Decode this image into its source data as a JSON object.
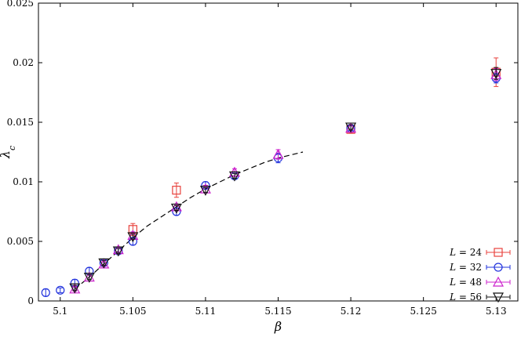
{
  "chart_data": {
    "type": "scatter",
    "title": "",
    "xlabel": "β",
    "ylabel": "λc",
    "xlim": [
      5.0985,
      5.1315
    ],
    "ylim": [
      0,
      0.025
    ],
    "xticks": [
      5.1,
      5.105,
      5.11,
      5.115,
      5.12,
      5.125,
      5.13
    ],
    "xtick_labels": [
      "5.1",
      "5.105",
      "5.11",
      "5.115",
      "5.12",
      "5.125",
      "5.13"
    ],
    "yticks": [
      0,
      0.005,
      0.01,
      0.015,
      0.02,
      0.025
    ],
    "ytick_labels": [
      "0",
      "0.005",
      "0.01",
      "0.015",
      "0.02",
      "0.025"
    ],
    "grid": false,
    "legend_position": "bottom-right",
    "series": [
      {
        "name": "L = 24",
        "legend": {
          "var": "L",
          "eq": " = 24"
        },
        "marker": "square",
        "color": "#e8413c",
        "points": [
          {
            "x": 5.105,
            "y": 0.006,
            "err": 0.0005
          },
          {
            "x": 5.108,
            "y": 0.0093,
            "err": 0.0006
          },
          {
            "x": 5.12,
            "y": 0.0144,
            "err": 0.0003
          },
          {
            "x": 5.13,
            "y": 0.0192,
            "err": 0.0012
          }
        ]
      },
      {
        "name": "L = 32",
        "legend": {
          "var": "L",
          "eq": " = 32"
        },
        "marker": "circle",
        "color": "#2233dd",
        "points": [
          {
            "x": 5.099,
            "y": 0.0007,
            "err": 0.0003
          },
          {
            "x": 5.1,
            "y": 0.0009,
            "err": 0.0002
          },
          {
            "x": 5.101,
            "y": 0.0015,
            "err": 0.0003
          },
          {
            "x": 5.102,
            "y": 0.0025,
            "err": 0.0003
          },
          {
            "x": 5.103,
            "y": 0.0032,
            "err": 0.0002
          },
          {
            "x": 5.104,
            "y": 0.0042,
            "err": 0.0002
          },
          {
            "x": 5.105,
            "y": 0.005,
            "err": 0.0003
          },
          {
            "x": 5.108,
            "y": 0.0075,
            "err": 0.0003
          },
          {
            "x": 5.11,
            "y": 0.0097,
            "err": 0.0003
          },
          {
            "x": 5.112,
            "y": 0.0105,
            "err": 0.0002
          },
          {
            "x": 5.115,
            "y": 0.012,
            "err": 0.0004
          },
          {
            "x": 5.12,
            "y": 0.0145,
            "err": 0.0002
          },
          {
            "x": 5.13,
            "y": 0.0187,
            "err": 0.0004
          }
        ]
      },
      {
        "name": "L = 48",
        "legend": {
          "var": "L",
          "eq": " = 48"
        },
        "marker": "triangle-up",
        "color": "#cc22cc",
        "points": [
          {
            "x": 5.101,
            "y": 0.001,
            "err": 0.0002
          },
          {
            "x": 5.102,
            "y": 0.002,
            "err": 0.0002
          },
          {
            "x": 5.103,
            "y": 0.0031,
            "err": 0.0002
          },
          {
            "x": 5.104,
            "y": 0.0043,
            "err": 0.0002
          },
          {
            "x": 5.105,
            "y": 0.0055,
            "err": 0.0003
          },
          {
            "x": 5.108,
            "y": 0.0079,
            "err": 0.0002
          },
          {
            "x": 5.11,
            "y": 0.0094,
            "err": 0.0003
          },
          {
            "x": 5.112,
            "y": 0.0108,
            "err": 0.0003
          },
          {
            "x": 5.115,
            "y": 0.0123,
            "err": 0.0004
          },
          {
            "x": 5.12,
            "y": 0.0145,
            "err": 0.0003
          },
          {
            "x": 5.13,
            "y": 0.019,
            "err": 0.0005
          }
        ]
      },
      {
        "name": "L = 56",
        "legend": {
          "var": "L",
          "eq": " = 56"
        },
        "marker": "triangle-down",
        "color": "#111111",
        "points": [
          {
            "x": 5.101,
            "y": 0.0011,
            "err": 0.0002
          },
          {
            "x": 5.102,
            "y": 0.002,
            "err": 0.0002
          },
          {
            "x": 5.103,
            "y": 0.0032,
            "err": 0.0002
          },
          {
            "x": 5.104,
            "y": 0.0042,
            "err": 0.0002
          },
          {
            "x": 5.105,
            "y": 0.0054,
            "err": 0.0002
          },
          {
            "x": 5.108,
            "y": 0.0078,
            "err": 0.0002
          },
          {
            "x": 5.11,
            "y": 0.0093,
            "err": 0.0002
          },
          {
            "x": 5.112,
            "y": 0.0105,
            "err": 0.0002
          },
          {
            "x": 5.12,
            "y": 0.0146,
            "err": 0.0002
          },
          {
            "x": 5.13,
            "y": 0.0191,
            "err": 0.0005
          }
        ]
      }
    ],
    "fit_curve": {
      "style": "dashed",
      "color": "#000000",
      "points": [
        [
          5.101,
          0.001
        ],
        [
          5.102,
          0.002
        ],
        [
          5.103,
          0.0031
        ],
        [
          5.104,
          0.0042
        ],
        [
          5.105,
          0.0053
        ],
        [
          5.106,
          0.0063
        ],
        [
          5.107,
          0.0071
        ],
        [
          5.108,
          0.0079
        ],
        [
          5.109,
          0.0087
        ],
        [
          5.11,
          0.0094
        ],
        [
          5.111,
          0.01
        ],
        [
          5.112,
          0.0106
        ],
        [
          5.113,
          0.0111
        ],
        [
          5.114,
          0.0116
        ],
        [
          5.115,
          0.012
        ],
        [
          5.1167,
          0.0125
        ]
      ]
    }
  }
}
